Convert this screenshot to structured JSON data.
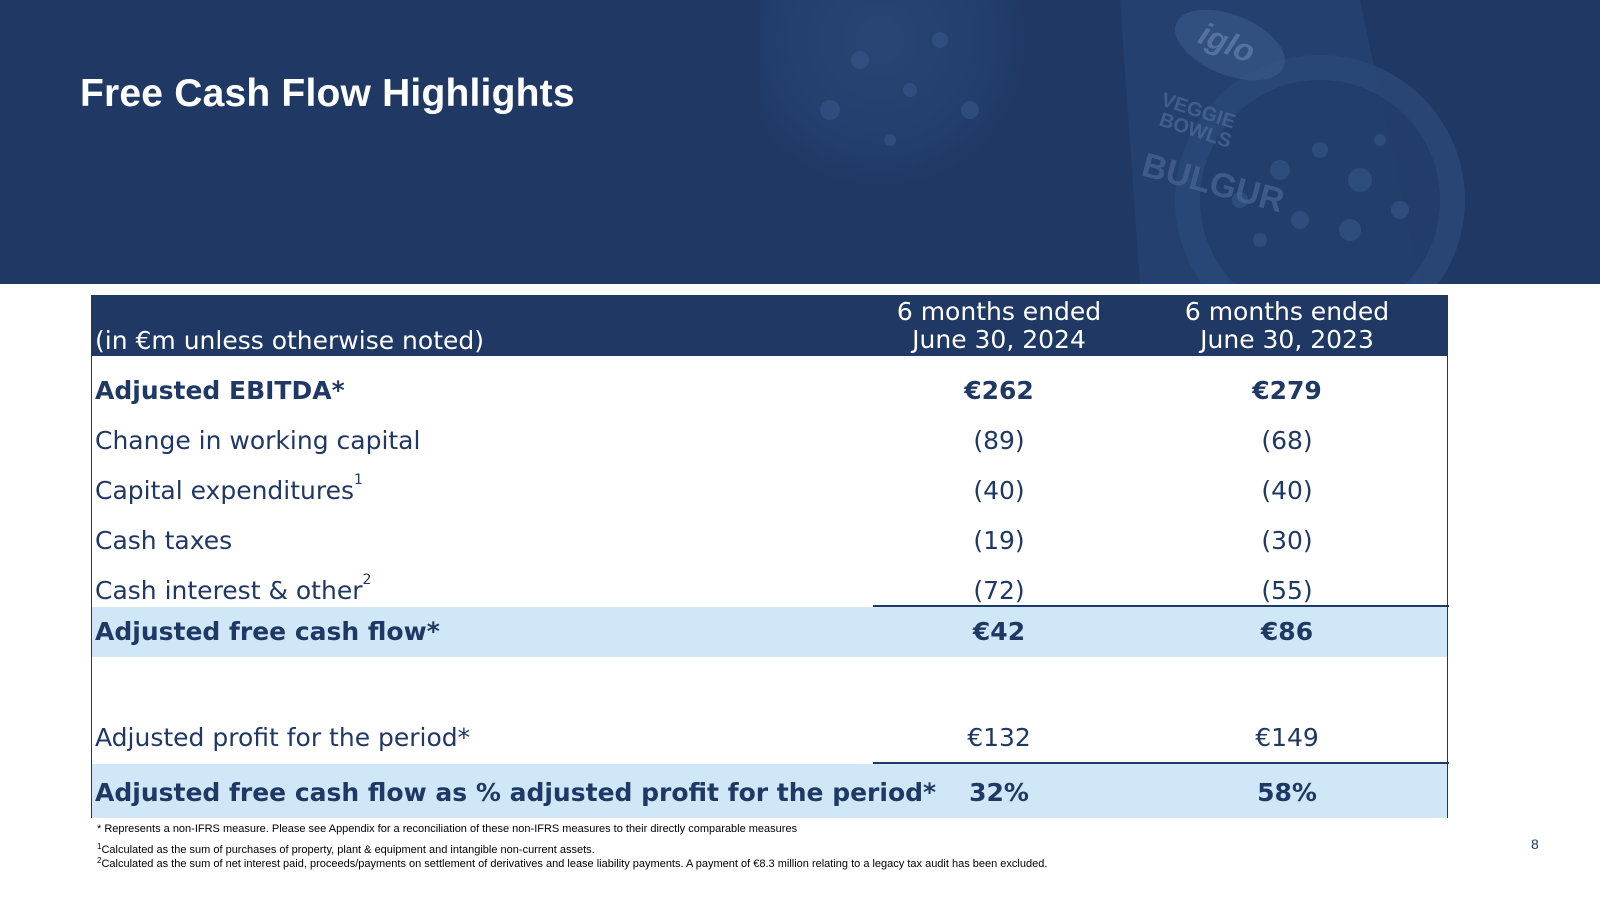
{
  "slide": {
    "title": "Free Cash Flow Highlights",
    "page_number": "8"
  },
  "table": {
    "units_label": "(in €m unless otherwise noted)",
    "columns": [
      {
        "line1": "6 months ended",
        "line2": "June 30, 2024"
      },
      {
        "line1": "6 months ended",
        "line2": "June 30, 2023"
      }
    ],
    "rows": [
      {
        "label": "Adjusted EBITDA*",
        "sup": "",
        "a": "€262",
        "b": "€279"
      },
      {
        "label": "Change in working capital",
        "sup": "",
        "a": "(89)",
        "b": "(68)"
      },
      {
        "label": "Capital expenditures",
        "sup": "1",
        "a": "(40)",
        "b": "(40)"
      },
      {
        "label": "Cash taxes",
        "sup": "",
        "a": "(19)",
        "b": "(30)"
      },
      {
        "label": "Cash interest & other",
        "sup": "2",
        "a": "(72)",
        "b": "(55)"
      },
      {
        "label": "Adjusted free cash flow*",
        "sup": "",
        "a": "€42",
        "b": "€86"
      },
      {
        "label": "Adjusted profit for the period*",
        "sup": "",
        "a": "€132",
        "b": "€149"
      },
      {
        "label": "Adjusted free cash flow as % adjusted profit for the period*",
        "sup": "",
        "a": "32%",
        "b": "58%"
      }
    ]
  },
  "footnotes": [
    {
      "marker": "",
      "text": "* Represents a non-IFRS measure. Please see Appendix for a reconciliation of these non-IFRS measures to their directly comparable measures"
    },
    {
      "marker": "1",
      "text": "Calculated as the sum of purchases of property, plant & equipment and intangible non-current assets."
    },
    {
      "marker": "2",
      "text": "Calculated as the sum of net interest paid, proceeds/payments on settlement of derivatives and lease liability payments. A payment of €8.3 million relating to a legacy tax audit has been excluded."
    }
  ],
  "brand": {
    "banner_photo_lettering": [
      "iglo",
      "VEGGIE BOWLS",
      "BULGUR"
    ]
  },
  "colors": {
    "navy": "#1f3864",
    "highlight": "#cfe7f7",
    "white": "#ffffff"
  }
}
